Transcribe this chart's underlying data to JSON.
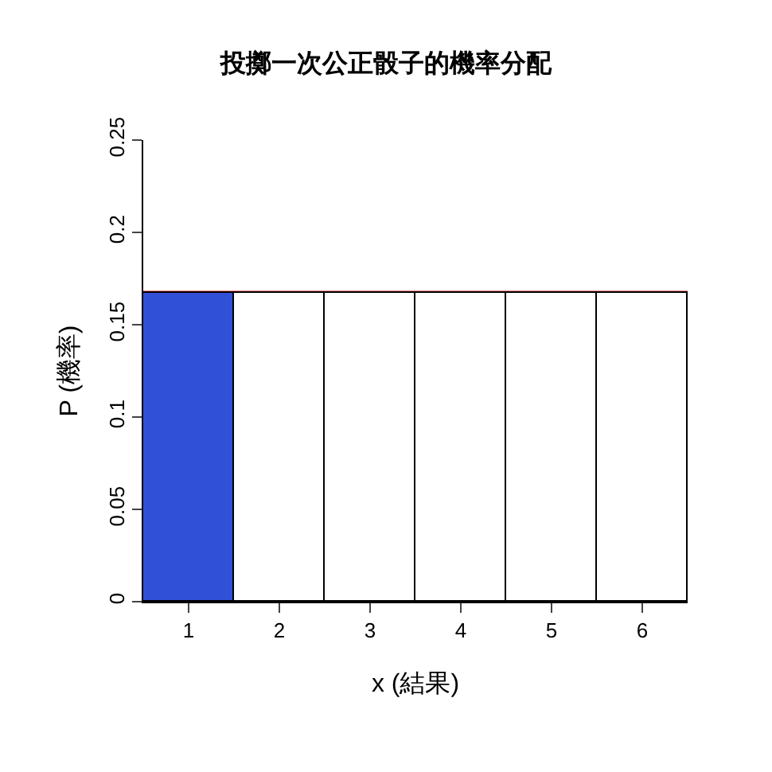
{
  "chart_data": {
    "type": "bar",
    "title": "投擲一次公正骰子的機率分配",
    "xlabel": "x (結果)",
    "ylabel": "P (機率)",
    "x": [
      1,
      2,
      3,
      4,
      5,
      6
    ],
    "values": [
      0.167,
      0.167,
      0.167,
      0.167,
      0.167,
      0.167
    ],
    "colors": [
      "#3050d8",
      "#ffffff",
      "#ffffff",
      "#ffffff",
      "#ffffff",
      "#ffffff"
    ],
    "xlim": [
      0.5,
      6.5
    ],
    "xticks": [
      1,
      2,
      3,
      4,
      5,
      6
    ],
    "ylim": [
      0,
      0.25
    ],
    "yticks": [
      0,
      0.05,
      0.1,
      0.15,
      0.2,
      0.25
    ],
    "ref_lines": [
      {
        "axis": "y",
        "value": 0.167,
        "color": "#ff0000"
      }
    ],
    "grid": false
  }
}
